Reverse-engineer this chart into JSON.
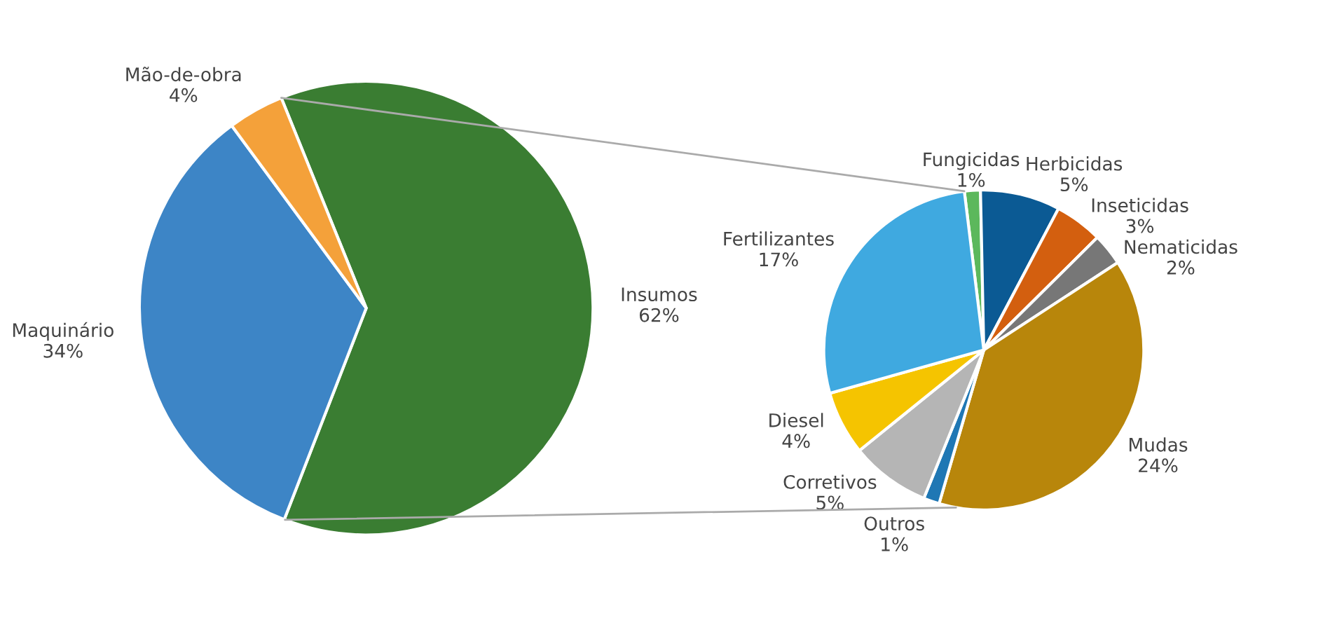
{
  "chart_data": [
    {
      "type": "pie",
      "categories": [
        "Insumos",
        "Maquinário",
        "Mão-de-obra"
      ],
      "values": [
        62,
        34,
        4
      ],
      "value_labels": [
        "62%",
        "34%",
        "4%"
      ],
      "colors": [
        "#3a7d32",
        "#3d85c6",
        "#f4a13a"
      ],
      "legend": false
    },
    {
      "type": "pie",
      "categories": [
        "Fungicidas",
        "Herbicidas",
        "Inseticidas",
        "Nematicidas",
        "Mudas",
        "Outros",
        "Corretivos",
        "Diesel",
        "Fertilizantes"
      ],
      "values": [
        1,
        5,
        3,
        2,
        24,
        1,
        5,
        4,
        17
      ],
      "value_labels": [
        "1%",
        "5%",
        "3%",
        "2%",
        "24%",
        "1%",
        "5%",
        "4%",
        "17%"
      ],
      "colors": [
        "#5cb85c",
        "#0b5a94",
        "#d35f0f",
        "#777777",
        "#b8860b",
        "#1f77b4",
        "#b5b5b5",
        "#f5c400",
        "#3fa9e0"
      ],
      "legend": false
    }
  ]
}
